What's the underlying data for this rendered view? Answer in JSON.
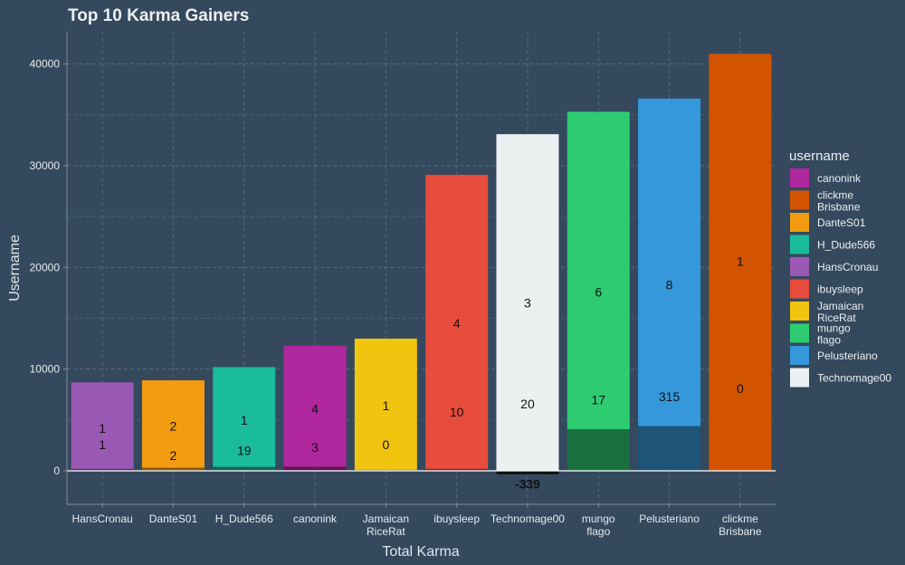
{
  "chart_data": {
    "type": "bar",
    "stacked": true,
    "title": "Top 10 Karma Gainers",
    "xlabel": "Total Karma",
    "ylabel": "Username",
    "ylim": [
      -3000,
      43000
    ],
    "yticks": [
      0,
      10000,
      20000,
      30000,
      40000
    ],
    "grid": true,
    "legend_title": "username",
    "legend_position": "right",
    "categories": [
      {
        "name": "HansCronau",
        "label_lines": [
          "HansCronau"
        ],
        "color": "#9b59b6",
        "segments": [
          {
            "value": 200,
            "shade": "dark",
            "label": "1",
            "label_at": 2600
          },
          {
            "value": 8500,
            "shade": "light",
            "label": "1",
            "label_at": 4200
          }
        ]
      },
      {
        "name": "DanteS01",
        "label_lines": [
          "DanteS01"
        ],
        "color": "#f39c12",
        "segments": [
          {
            "value": 300,
            "shade": "dark",
            "label": "2",
            "label_at": 1500
          },
          {
            "value": 8600,
            "shade": "light",
            "label": "2",
            "label_at": 4400
          }
        ]
      },
      {
        "name": "H_Dude566",
        "label_lines": [
          "H_Dude566"
        ],
        "color": "#1abc9c",
        "segments": [
          {
            "value": 400,
            "shade": "dark",
            "label": "19",
            "label_at": 2000
          },
          {
            "value": 9800,
            "shade": "light",
            "label": "1",
            "label_at": 5000
          }
        ]
      },
      {
        "name": "canonink",
        "label_lines": [
          "canonink"
        ],
        "color": "#b0279e",
        "segments": [
          {
            "value": 400,
            "shade": "dark",
            "label": "3",
            "label_at": 2300
          },
          {
            "value": 11900,
            "shade": "light",
            "label": "4",
            "label_at": 6100
          }
        ]
      },
      {
        "name": "JamaicanRiceRat",
        "label_lines": [
          "Jamaican",
          "RiceRat"
        ],
        "color": "#f1c40f",
        "segments": [
          {
            "value": 100,
            "shade": "dark",
            "label": "0",
            "label_at": 2600
          },
          {
            "value": 12900,
            "shade": "light",
            "label": "1",
            "label_at": 6400
          }
        ]
      },
      {
        "name": "ibuysleep",
        "label_lines": [
          "ibuysleep"
        ],
        "color": "#e74c3c",
        "segments": [
          {
            "value": 200,
            "shade": "dark",
            "label": "10",
            "label_at": 5800
          },
          {
            "value": 28900,
            "shade": "light",
            "label": "4",
            "label_at": 14500
          }
        ]
      },
      {
        "name": "Technomage00",
        "label_lines": [
          "Technomage00"
        ],
        "color": "#ecf0f1",
        "segments": [
          {
            "value": -339,
            "shade": "dark",
            "label": "-339",
            "label_at": -1300
          },
          {
            "value": 33100,
            "shade": "light",
            "label": "20",
            "label_at": 6600
          },
          {
            "value": 0,
            "shade": "light",
            "label": "3",
            "label_at": 16500
          }
        ]
      },
      {
        "name": "mungoflago",
        "label_lines": [
          "mungo",
          "flago"
        ],
        "color": "#2ecc71",
        "segments": [
          {
            "value": 4100,
            "shade": "dark",
            "label": "17",
            "label_at": 7000
          },
          {
            "value": 31200,
            "shade": "light",
            "label": "6",
            "label_at": 17600
          }
        ]
      },
      {
        "name": "Pelusteriano",
        "label_lines": [
          "Pelusteriano"
        ],
        "color": "#3498db",
        "segments": [
          {
            "value": 4400,
            "shade": "dark",
            "label": "315",
            "label_at": 7300
          },
          {
            "value": 32200,
            "shade": "light",
            "label": "8",
            "label_at": 18300
          }
        ]
      },
      {
        "name": "clickmeBrisbane",
        "label_lines": [
          "clickme",
          "Brisbane"
        ],
        "color": "#d35400",
        "segments": [
          {
            "value": 0,
            "shade": "dark",
            "label": "0",
            "label_at": 8100
          },
          {
            "value": 41000,
            "shade": "light",
            "label": "1",
            "label_at": 20600
          }
        ]
      }
    ],
    "legend": [
      {
        "label_lines": [
          "canonink"
        ],
        "color": "#b0279e"
      },
      {
        "label_lines": [
          "clickme",
          "Brisbane"
        ],
        "color": "#d35400"
      },
      {
        "label_lines": [
          "DanteS01"
        ],
        "color": "#f39c12"
      },
      {
        "label_lines": [
          "H_Dude566"
        ],
        "color": "#1abc9c"
      },
      {
        "label_lines": [
          "HansCronau"
        ],
        "color": "#9b59b6"
      },
      {
        "label_lines": [
          "ibuysleep"
        ],
        "color": "#e74c3c"
      },
      {
        "label_lines": [
          "Jamaican",
          "RiceRat"
        ],
        "color": "#f1c40f"
      },
      {
        "label_lines": [
          "mungo",
          "flago"
        ],
        "color": "#2ecc71"
      },
      {
        "label_lines": [
          "Pelusteriano"
        ],
        "color": "#3498db"
      },
      {
        "label_lines": [
          "Technomage00"
        ],
        "color": "#ecf0f1"
      }
    ]
  }
}
